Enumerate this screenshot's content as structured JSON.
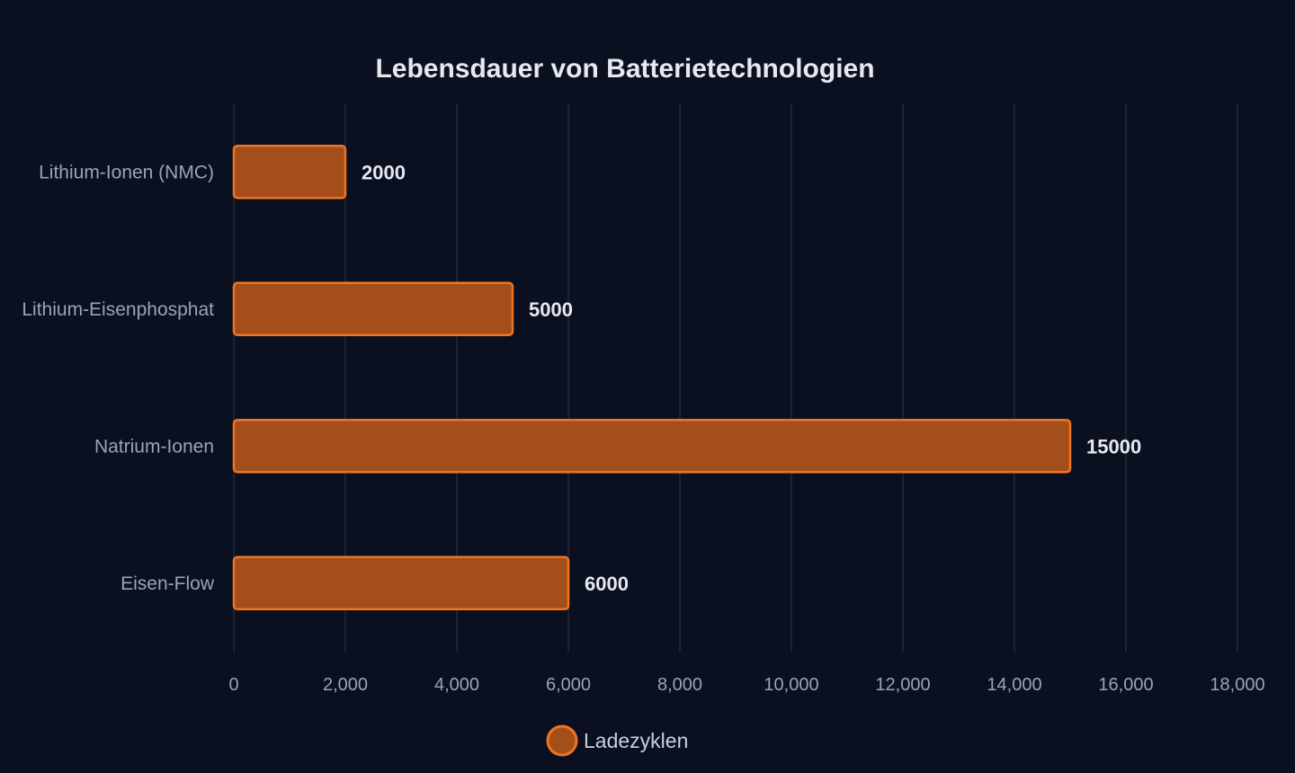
{
  "chart_data": {
    "type": "bar",
    "orientation": "horizontal",
    "title": "Lebensdauer von Batterietechnologien",
    "categories": [
      "Lithium-Ionen (NMC)",
      "Lithium-Eisenphosphat",
      "Natrium-Ionen",
      "Eisen-Flow"
    ],
    "series": [
      {
        "name": "Ladezyklen",
        "values": [
          2000,
          5000,
          15000,
          6000
        ]
      }
    ],
    "xlim": [
      0,
      18000
    ],
    "x_ticks": [
      0,
      2000,
      4000,
      6000,
      8000,
      10000,
      12000,
      14000,
      16000,
      18000
    ],
    "x_tick_labels": [
      "0",
      "2,000",
      "4,000",
      "6,000",
      "8,000",
      "10,000",
      "12,000",
      "14,000",
      "16,000",
      "18,000"
    ],
    "value_labels": [
      "2000",
      "5000",
      "15000",
      "6000"
    ],
    "grid": true,
    "legend": {
      "position": "bottom",
      "entries": [
        "Ladezyklen"
      ]
    },
    "colors": {
      "bar_fill": "#a44e1b",
      "bar_stroke": "#f07522",
      "grid": "#222a3a",
      "background": "#0b1020"
    }
  }
}
